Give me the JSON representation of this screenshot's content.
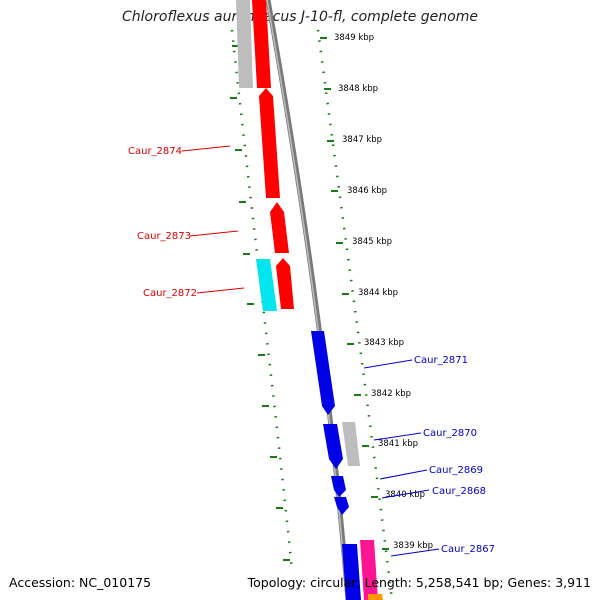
{
  "title": "Chloroflexus aurantiacus J-10-fl, complete genome",
  "footer": {
    "accession": "Accession: NC_010175",
    "summary": "Topology: circular; Length: 5,258,541 bp; Genes: 3,911"
  },
  "ticks": [
    "3849 kbp",
    "3848 kbp",
    "3847 kbp",
    "3846 kbp",
    "3845 kbp",
    "3844 kbp",
    "3843 kbp",
    "3842 kbp",
    "3841 kbp",
    "3840 kbp",
    "3839 kbp"
  ],
  "genes": [
    {
      "label": "Caur_2874",
      "strand": "top",
      "color": "#dd0000"
    },
    {
      "label": "Caur_2873",
      "strand": "top",
      "color": "#dd0000"
    },
    {
      "label": "Caur_2872",
      "strand": "top",
      "color": "#dd0000"
    },
    {
      "label": "Caur_2871",
      "strand": "bottom",
      "color": "#0000cc"
    },
    {
      "label": "Caur_2870",
      "strand": "bottom",
      "color": "#0000cc"
    },
    {
      "label": "Caur_2869",
      "strand": "bottom",
      "color": "#0000cc"
    },
    {
      "label": "Caur_2868",
      "strand": "bottom",
      "color": "#0000cc"
    },
    {
      "label": "Caur_2867",
      "strand": "bottom",
      "color": "#0000cc"
    }
  ],
  "colors": {
    "red": "#ff0000",
    "blue": "#0000e6",
    "grey": "#bdbdbd",
    "cyan": "#00e5ee",
    "pink": "#ff1493",
    "orange": "#ff9900",
    "ruler": "#1a7a1a"
  }
}
